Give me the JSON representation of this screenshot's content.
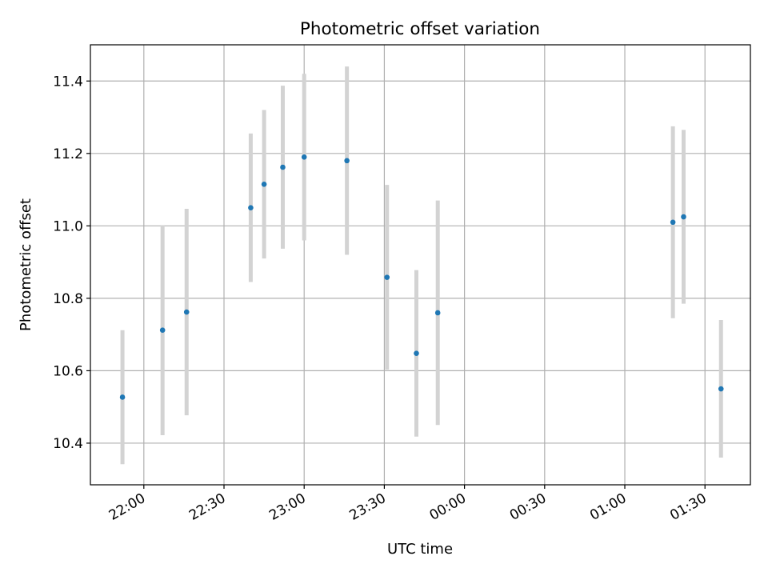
{
  "chart_data": {
    "type": "scatter",
    "title": "Photometric offset variation",
    "xlabel": "UTC time",
    "ylabel": "Photometric offset",
    "x_axis_type": "time",
    "x_ticks": [
      "22:00",
      "22:30",
      "23:00",
      "23:30",
      "00:00",
      "00:30",
      "01:00",
      "01:30"
    ],
    "xlim": [
      "21:40",
      "01:47"
    ],
    "ylim": [
      10.285,
      11.5
    ],
    "y_ticks": [
      10.4,
      10.6,
      10.8,
      11.0,
      11.2,
      11.4
    ],
    "grid": true,
    "colors": {
      "points": "#1f77b4",
      "errorbars": "#d3d3d3",
      "grid": "#b0b0b0"
    },
    "series": [
      {
        "points": [
          {
            "x": "21:52",
            "y": 10.527,
            "ylow": 10.342,
            "yhigh": 10.712
          },
          {
            "x": "22:07",
            "y": 10.712,
            "ylow": 10.422,
            "yhigh": 11.002
          },
          {
            "x": "22:16",
            "y": 10.762,
            "ylow": 10.477,
            "yhigh": 11.047
          },
          {
            "x": "22:40",
            "y": 11.05,
            "ylow": 10.845,
            "yhigh": 11.255
          },
          {
            "x": "22:45",
            "y": 11.115,
            "ylow": 10.91,
            "yhigh": 11.32
          },
          {
            "x": "22:52",
            "y": 11.162,
            "ylow": 10.937,
            "yhigh": 11.387
          },
          {
            "x": "23:00",
            "y": 11.19,
            "ylow": 10.96,
            "yhigh": 11.42
          },
          {
            "x": "23:16",
            "y": 11.18,
            "ylow": 10.92,
            "yhigh": 11.44
          },
          {
            "x": "23:31",
            "y": 10.858,
            "ylow": 10.603,
            "yhigh": 11.113
          },
          {
            "x": "23:42",
            "y": 10.648,
            "ylow": 10.418,
            "yhigh": 10.878
          },
          {
            "x": "23:50",
            "y": 10.76,
            "ylow": 10.45,
            "yhigh": 11.07
          },
          {
            "x": "01:18",
            "y": 11.01,
            "ylow": 10.745,
            "yhigh": 11.275
          },
          {
            "x": "01:22",
            "y": 11.025,
            "ylow": 10.785,
            "yhigh": 11.265
          },
          {
            "x": "01:36",
            "y": 10.55,
            "ylow": 10.36,
            "yhigh": 10.74
          }
        ]
      }
    ]
  }
}
